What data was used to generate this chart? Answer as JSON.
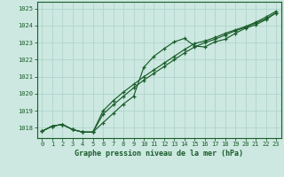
{
  "xlabel": "Graphe pression niveau de la mer (hPa)",
  "background_color": "#cce8e0",
  "grid_color": "#b0d4cc",
  "line_color": "#1a5c2a",
  "hours": [
    0,
    1,
    2,
    3,
    4,
    5,
    6,
    7,
    8,
    9,
    10,
    11,
    12,
    13,
    14,
    15,
    16,
    17,
    18,
    19,
    20,
    21,
    22,
    23
  ],
  "pressure_line1": [
    1017.8,
    1018.1,
    1018.2,
    1017.9,
    1017.75,
    1017.75,
    1018.3,
    1018.85,
    1019.4,
    1019.85,
    1021.55,
    1022.2,
    1022.65,
    1023.05,
    1023.25,
    1022.8,
    1022.75,
    1023.05,
    1023.2,
    1023.55,
    1023.85,
    1024.05,
    1024.35,
    1024.75
  ],
  "pressure_line2": [
    1017.8,
    1018.1,
    1018.2,
    1017.9,
    1017.75,
    1017.75,
    1018.8,
    1019.35,
    1019.85,
    1020.35,
    1020.8,
    1021.2,
    1021.6,
    1022.0,
    1022.4,
    1022.75,
    1023.0,
    1023.2,
    1023.45,
    1023.7,
    1023.9,
    1024.15,
    1024.4,
    1024.75
  ],
  "pressure_line3": [
    1017.8,
    1018.1,
    1018.2,
    1017.9,
    1017.75,
    1017.75,
    1019.0,
    1019.6,
    1020.1,
    1020.55,
    1021.0,
    1021.4,
    1021.8,
    1022.2,
    1022.6,
    1022.95,
    1023.1,
    1023.3,
    1023.55,
    1023.75,
    1023.95,
    1024.2,
    1024.5,
    1024.85
  ],
  "ylim_min": 1017.4,
  "ylim_max": 1025.4,
  "yticks": [
    1018,
    1019,
    1020,
    1021,
    1022,
    1023,
    1024,
    1025
  ],
  "xticks": [
    0,
    1,
    2,
    3,
    4,
    5,
    6,
    7,
    8,
    9,
    10,
    11,
    12,
    13,
    14,
    15,
    16,
    17,
    18,
    19,
    20,
    21,
    22,
    23
  ]
}
